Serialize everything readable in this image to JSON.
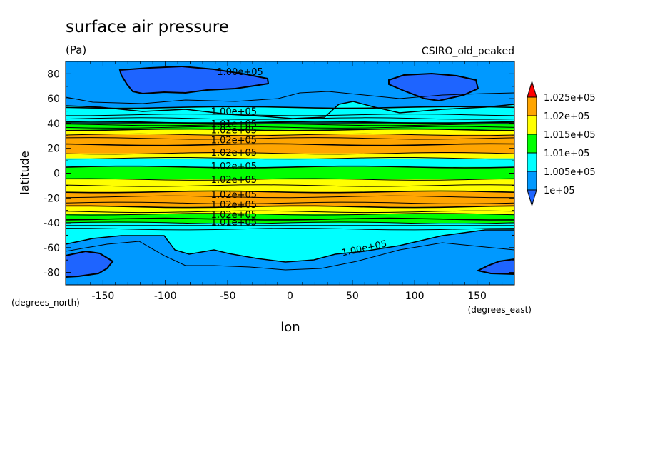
{
  "chart_data": {
    "type": "heatmap",
    "title": "surface air pressure",
    "units": "(Pa)",
    "dataset": "CSIRO_old_peaked",
    "xlabel": "lon",
    "ylabel": "latitude",
    "x_units": "(degrees_east)",
    "y_units": "(degrees_north)",
    "xlim": [
      -180,
      180
    ],
    "ylim": [
      -90,
      90
    ],
    "x_ticks": [
      -150,
      -100,
      -50,
      0,
      50,
      100,
      150
    ],
    "y_ticks": [
      -80,
      -60,
      -40,
      -20,
      0,
      20,
      40,
      60,
      80
    ],
    "colorbar": {
      "levels": [
        "1.025e+05",
        "1.02e+05",
        "1.015e+05",
        "1.01e+05",
        "1.005e+05",
        "1e+05"
      ],
      "colors": [
        "#ff0000",
        "#ffa500",
        "#ffff00",
        "#00ff00",
        "#00ffff",
        "#0099ff",
        "#1e64ff"
      ]
    },
    "bands": [
      {
        "lat_min": 83,
        "lat_max": 90,
        "color": "#0099ff"
      },
      {
        "lat_min": 53,
        "lat_max": 83,
        "color": "#0099ff"
      },
      {
        "lat_min": 43,
        "lat_max": 53,
        "color": "#00ffff"
      },
      {
        "lat_min": 40,
        "lat_max": 43,
        "color": "#00ffff"
      },
      {
        "lat_min": 35,
        "lat_max": 40,
        "color": "#00ff00"
      },
      {
        "lat_min": 31,
        "lat_max": 35,
        "color": "#ffff00"
      },
      {
        "lat_min": 16,
        "lat_max": 31,
        "color": "#ffa500"
      },
      {
        "lat_min": 12,
        "lat_max": 16,
        "color": "#ffff00"
      },
      {
        "lat_min": 5,
        "lat_max": 12,
        "color": "#00ffff"
      },
      {
        "lat_min": -5,
        "lat_max": 5,
        "color": "#00ff00"
      },
      {
        "lat_min": -10,
        "lat_max": -5,
        "color": "#ffff00"
      },
      {
        "lat_min": -15,
        "lat_max": -10,
        "color": "#ffff00"
      },
      {
        "lat_min": -27,
        "lat_max": -15,
        "color": "#ffa500"
      },
      {
        "lat_min": -33,
        "lat_max": -27,
        "color": "#ffff00"
      },
      {
        "lat_min": -40,
        "lat_max": -33,
        "color": "#00ff00"
      },
      {
        "lat_min": -45,
        "lat_max": -40,
        "color": "#00ffff"
      },
      {
        "lat_min": -90,
        "lat_max": -45,
        "color": "#0099ff"
      }
    ],
    "contour_lats": [
      53,
      47,
      44,
      41,
      39,
      37,
      35,
      31,
      28,
      23,
      16,
      12,
      5,
      -5,
      -10,
      -15,
      -19,
      -24,
      -27,
      -31,
      -33,
      -37,
      -40,
      -45
    ],
    "contour_labels": [
      {
        "text": "1.00e+05",
        "lon": -40,
        "lat": 82
      },
      {
        "text": "1.00e+05",
        "lon": -45,
        "lat": 50
      },
      {
        "text": "1.01e+05",
        "lon": -45,
        "lat": 40
      },
      {
        "text": "1.02e+05",
        "lon": -45,
        "lat": 35
      },
      {
        "text": "1.02e+05",
        "lon": -45,
        "lat": 27
      },
      {
        "text": "1.02e+05",
        "lon": -45,
        "lat": 17
      },
      {
        "text": "1.02e+05",
        "lon": -45,
        "lat": 6
      },
      {
        "text": "1.02e+05",
        "lon": -45,
        "lat": -5
      },
      {
        "text": "1.02e+05",
        "lon": -45,
        "lat": -17
      },
      {
        "text": "1.02e+05",
        "lon": -45,
        "lat": -25
      },
      {
        "text": "1.02e+05",
        "lon": -45,
        "lat": -33
      },
      {
        "text": "1.01e+05",
        "lon": -45,
        "lat": -39
      },
      {
        "text": "1.00e+05",
        "lon": 60,
        "lat": -60
      }
    ]
  }
}
